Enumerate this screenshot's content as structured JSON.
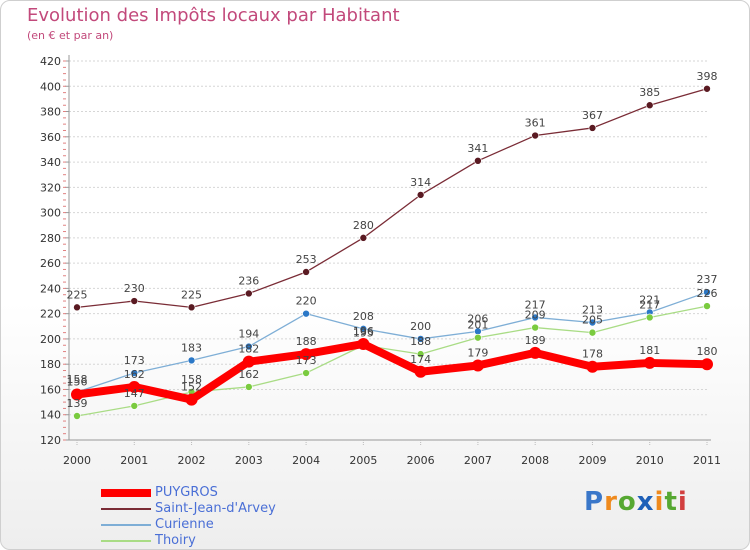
{
  "header": {
    "title": "Evolution des Impôts locaux par Habitant",
    "subtitle": "(en € et par an)"
  },
  "logo": {
    "text": "Proxiti",
    "letter_colors": [
      "#3a77c9",
      "#ef8a1d",
      "#56a832",
      "#1e60b8",
      "#ef8a1d",
      "#56a832",
      "#d23f3f"
    ]
  },
  "chart_data": {
    "type": "line",
    "title": "Evolution des Impôts locaux par Habitant",
    "subtitle": "(en € et par an)",
    "xlabel": "",
    "ylabel": "",
    "x": [
      "2000",
      "2001",
      "2002",
      "2003",
      "2004",
      "2005",
      "2006",
      "2007",
      "2008",
      "2009",
      "2010",
      "2011"
    ],
    "ylim": [
      120,
      420
    ],
    "yticks": [
      120,
      140,
      160,
      180,
      200,
      220,
      240,
      260,
      280,
      300,
      320,
      340,
      360,
      380,
      400,
      420
    ],
    "grid": "horizontal",
    "legend_position": "bottom-left",
    "series": [
      {
        "name": "Saint-Jean-d'Arvey",
        "color": "#7a2c36",
        "marker_color": "#5a1a22",
        "emphasis": false,
        "values": [
          225,
          230,
          225,
          236,
          253,
          280,
          314,
          341,
          361,
          367,
          385,
          398
        ]
      },
      {
        "name": "Curienne",
        "color": "#7eaed6",
        "marker_color": "#2b78c7",
        "emphasis": false,
        "values": [
          158,
          173,
          183,
          194,
          220,
          208,
          200,
          206,
          217,
          213,
          221,
          237
        ]
      },
      {
        "name": "Thoiry",
        "color": "#a9dc85",
        "marker_color": "#7acb3f",
        "emphasis": false,
        "values": [
          139,
          147,
          158,
          162,
          173,
          195,
          188,
          201,
          209,
          205,
          217,
          226
        ]
      },
      {
        "name": "PUYGROS",
        "color": "#ff0000",
        "marker_color": "#ff0000",
        "emphasis": true,
        "values": [
          156,
          162,
          152,
          182,
          188,
          196,
          174,
          179,
          189,
          178,
          181,
          180
        ]
      }
    ]
  }
}
